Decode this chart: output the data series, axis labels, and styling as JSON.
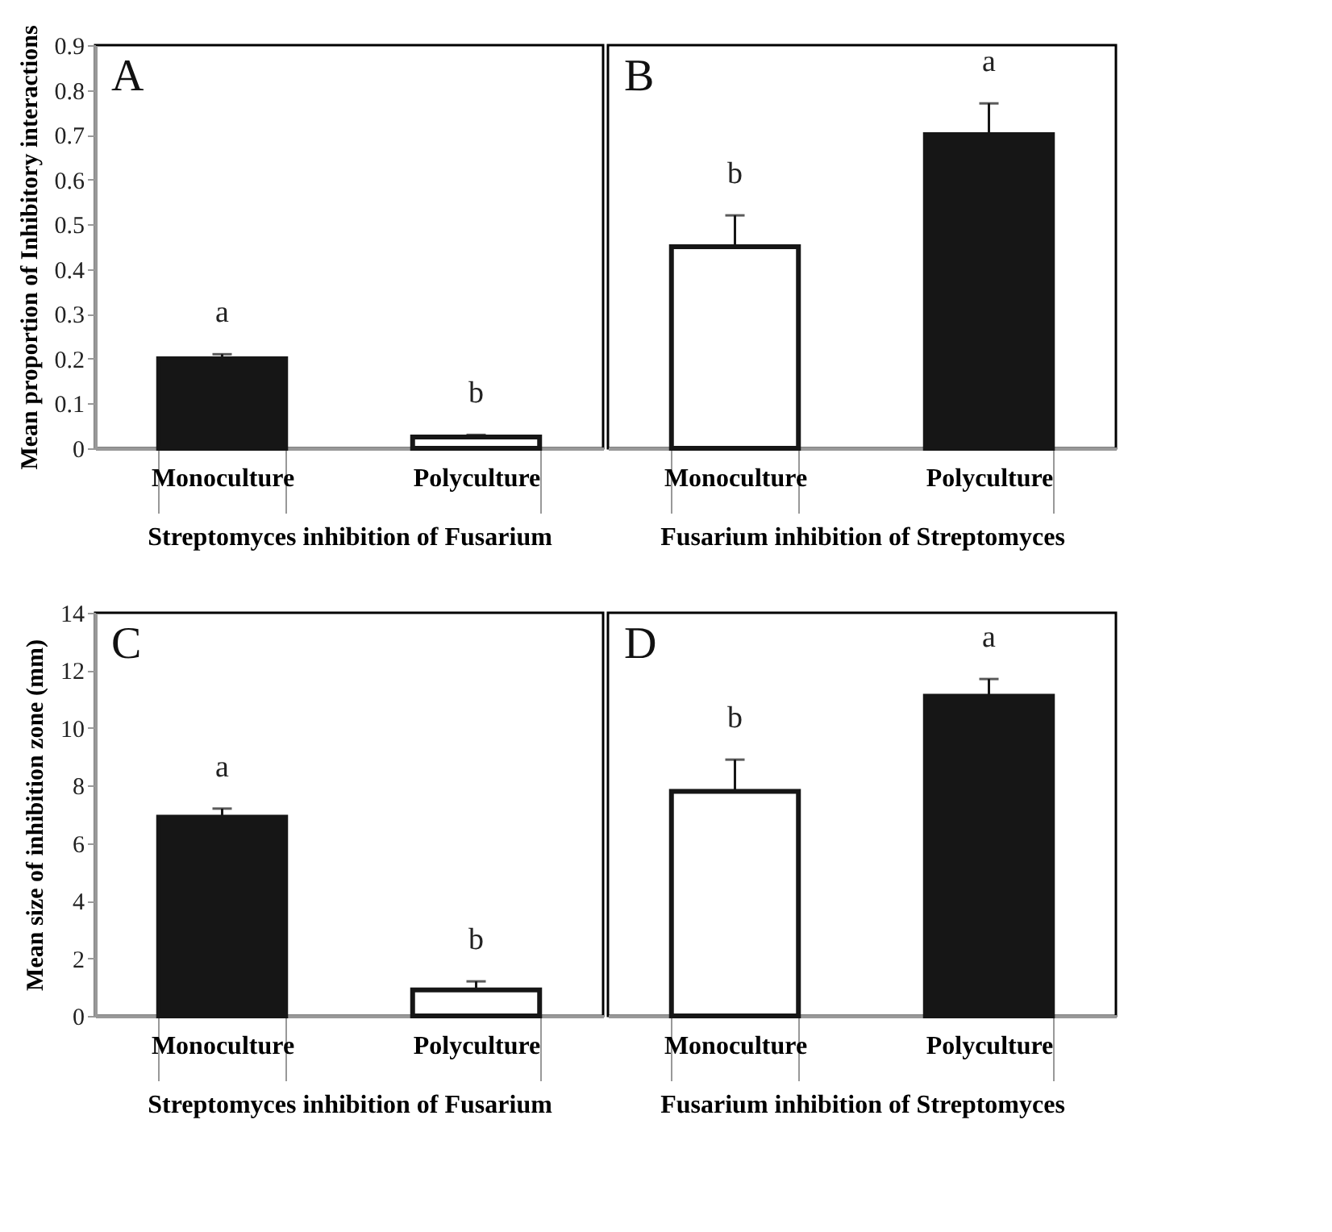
{
  "chart_data": [
    {
      "type": "bar",
      "categories": [
        "Monoculture",
        "Polyculture"
      ],
      "values": [
        0.2,
        0.025
      ],
      "errors": [
        [
          0.2,
          0.21
        ],
        [
          0.025,
          0.03
        ]
      ],
      "colors": [
        "#161616",
        "#ffffff"
      ],
      "xlabel": "Streptomyces inhibition of Fusarium",
      "ylabel": "Mean proportion of Inhibitory interactions",
      "ylim": [
        0,
        0.9
      ],
      "yticks": [
        0,
        0.1,
        0.2,
        0.3,
        0.4,
        0.5,
        0.6,
        0.7,
        0.8,
        0.9
      ],
      "annotations": [
        "A",
        "a",
        "b"
      ]
    },
    {
      "type": "bar",
      "categories": [
        "Monoculture",
        "Polyculture"
      ],
      "values": [
        0.45,
        0.7
      ],
      "errors": [
        [
          0.45,
          0.52
        ],
        [
          0.7,
          0.77
        ]
      ],
      "colors": [
        "#ffffff",
        "#161616"
      ],
      "xlabel": "Fusarium inhibition of Streptomyces",
      "ylim": [
        0,
        0.9
      ],
      "yticks": [
        0,
        0.1,
        0.2,
        0.3,
        0.4,
        0.5,
        0.6,
        0.7,
        0.8,
        0.9
      ],
      "tick_labels": "x",
      "annotations": [
        "B",
        "b",
        "a"
      ]
    },
    {
      "type": "bar",
      "categories": [
        "Monoculture",
        "Polyculture"
      ],
      "values": [
        6.9,
        0.9
      ],
      "errors": [
        [
          6.9,
          7.2
        ],
        [
          0.9,
          1.2
        ]
      ],
      "colors": [
        "#161616",
        "#ffffff"
      ],
      "xlabel": "Streptomyces inhibition of Fusarium",
      "ylabel": "Mean size of inhibition zone (mm)",
      "ylim": [
        0,
        14
      ],
      "yticks": [
        0,
        2,
        4,
        6,
        8,
        10,
        12,
        14
      ],
      "annotations": [
        "C",
        "a",
        "b"
      ]
    },
    {
      "type": "bar",
      "categories": [
        "Monoculture",
        "Polyculture"
      ],
      "values": [
        7.8,
        11.1
      ],
      "errors": [
        [
          7.8,
          8.9
        ],
        [
          11.1,
          11.7
        ]
      ],
      "colors": [
        "#ffffff",
        "#161616"
      ],
      "xlabel": "Fusarium inhibition of Streptomyces",
      "ylim": [
        0,
        14
      ],
      "yticks": [
        0,
        2,
        4,
        6,
        8,
        10,
        12,
        14
      ],
      "tick_labels": "x",
      "annotations": [
        "D",
        "b",
        "a"
      ]
    }
  ]
}
